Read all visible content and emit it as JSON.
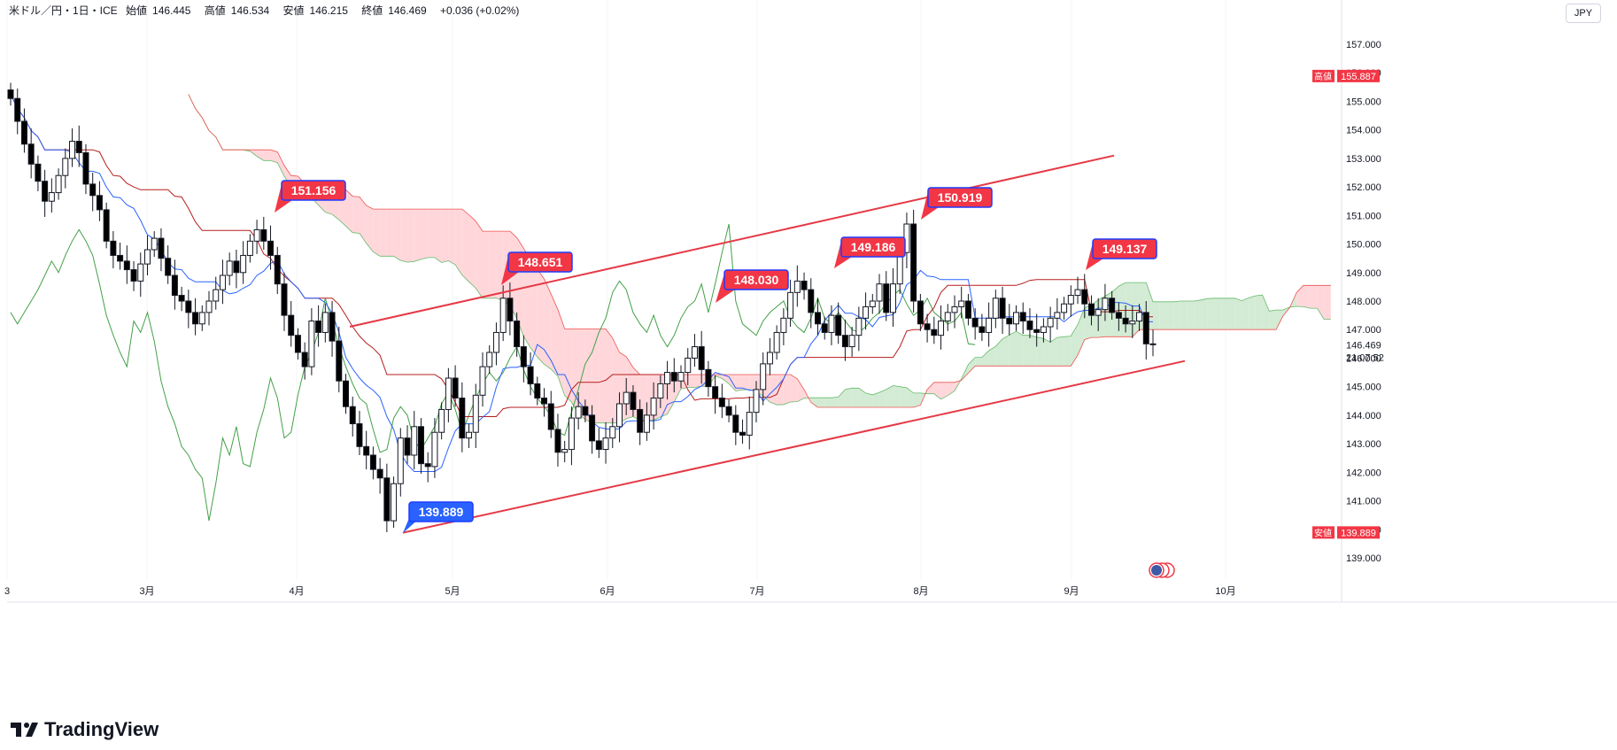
{
  "header": {
    "symbol": "米ドル／円・1日・ICE",
    "open_label": "始値",
    "open": "146.445",
    "high_label": "高値",
    "high": "146.534",
    "low_label": "安値",
    "low": "146.215",
    "close_label": "終値",
    "close": "146.469",
    "change": "+0.036 (+0.02%)"
  },
  "currency": "JPY",
  "footer": {
    "brand": "TradingView"
  },
  "colors": {
    "up_body": "#ffffff",
    "down_body": "#000000",
    "annotation_red": "#f23645",
    "annotation_blue": "#2962ff",
    "tenkan": "#2962ff",
    "kijun": "#b71c1c",
    "chikou": "#43a047",
    "cloud_bull": "#c8e6c9",
    "cloud_bear": "#ffcdd2",
    "trendline": "#e53945"
  },
  "chart_data": {
    "type": "candlestick",
    "price_scale": {
      "ylim": [
        138.5,
        157.8
      ],
      "ticks": [
        "157.000",
        "156.000",
        "155.000",
        "154.000",
        "153.000",
        "152.000",
        "151.000",
        "150.000",
        "149.000",
        "148.000",
        "147.000",
        "146.000",
        "145.000",
        "144.000",
        "143.000",
        "142.000",
        "141.000",
        "140.000",
        "139.000"
      ],
      "labels": {
        "high_marker": {
          "label": "高値",
          "value": "155.887"
        },
        "low_marker": {
          "label": "安値",
          "value": "139.889"
        },
        "last_price": "146.469",
        "countdown": "21:07:52"
      }
    },
    "time_axis": [
      "3",
      "3月",
      "4月",
      "5月",
      "6月",
      "7月",
      "8月",
      "9月",
      "10月"
    ],
    "callouts": [
      {
        "text": "151.156",
        "kind": "high"
      },
      {
        "text": "148.651",
        "kind": "high"
      },
      {
        "text": "139.889",
        "kind": "low"
      },
      {
        "text": "148.030",
        "kind": "high"
      },
      {
        "text": "149.186",
        "kind": "high"
      },
      {
        "text": "150.919",
        "kind": "high"
      },
      {
        "text": "149.137",
        "kind": "high"
      }
    ],
    "trend_channel": {
      "upper": [
        [
          "4月中旬",
          147.1
        ],
        [
          "10月上旬",
          153.1
        ]
      ],
      "lower": [
        [
          "4月下旬",
          139.9
        ],
        [
          "9月中旬",
          145.9
        ]
      ]
    },
    "candles_close_approx": [
      155.1,
      154.3,
      153.5,
      152.8,
      152.2,
      151.5,
      151.8,
      152.4,
      153.0,
      153.6,
      153.2,
      152.1,
      151.7,
      151.2,
      150.1,
      149.6,
      149.4,
      149.1,
      148.7,
      149.3,
      149.8,
      150.2,
      149.5,
      148.9,
      148.2,
      148.0,
      147.6,
      147.2,
      147.6,
      148.0,
      148.4,
      148.9,
      149.4,
      149.0,
      149.6,
      150.1,
      150.5,
      150.1,
      149.6,
      148.6,
      147.5,
      146.8,
      146.2,
      145.7,
      147.3,
      146.9,
      147.6,
      146.6,
      145.2,
      144.3,
      143.7,
      142.9,
      142.6,
      142.1,
      141.8,
      140.3,
      141.6,
      143.2,
      142.6,
      143.6,
      142.3,
      142.2,
      143.4,
      144.2,
      145.3,
      144.6,
      143.2,
      143.4,
      144.7,
      145.7,
      146.2,
      146.9,
      148.1,
      147.3,
      146.4,
      145.7,
      145.1,
      144.6,
      144.4,
      143.5,
      142.7,
      142.8,
      143.9,
      144.3,
      144.0,
      143.1,
      142.8,
      143.2,
      143.6,
      144.4,
      144.8,
      144.2,
      143.4,
      144.0,
      144.6,
      145.1,
      145.5,
      145.2,
      145.5,
      146.0,
      146.4,
      145.6,
      145.0,
      144.6,
      144.3,
      144.0,
      143.4,
      143.3,
      144.1,
      144.9,
      145.8,
      146.2,
      146.9,
      147.4,
      148.3,
      148.7,
      148.4,
      147.6,
      147.2,
      146.9,
      147.5,
      146.8,
      146.4,
      146.8,
      147.4,
      147.8,
      148.0,
      148.6,
      147.6,
      148.6,
      149.7,
      150.7,
      148.0,
      147.2,
      147.0,
      146.8,
      147.3,
      147.6,
      147.8,
      148.0,
      147.4,
      147.1,
      146.9,
      147.4,
      148.1,
      147.4,
      147.2,
      147.6,
      147.3,
      147.0,
      146.9,
      147.1,
      147.4,
      147.6,
      147.9,
      148.2,
      148.4,
      147.9,
      147.5,
      147.7,
      148.1,
      147.6,
      147.4,
      147.2,
      147.3,
      147.6,
      146.5,
      146.47
    ],
    "indicators": [
      "Ichimoku Cloud"
    ]
  }
}
